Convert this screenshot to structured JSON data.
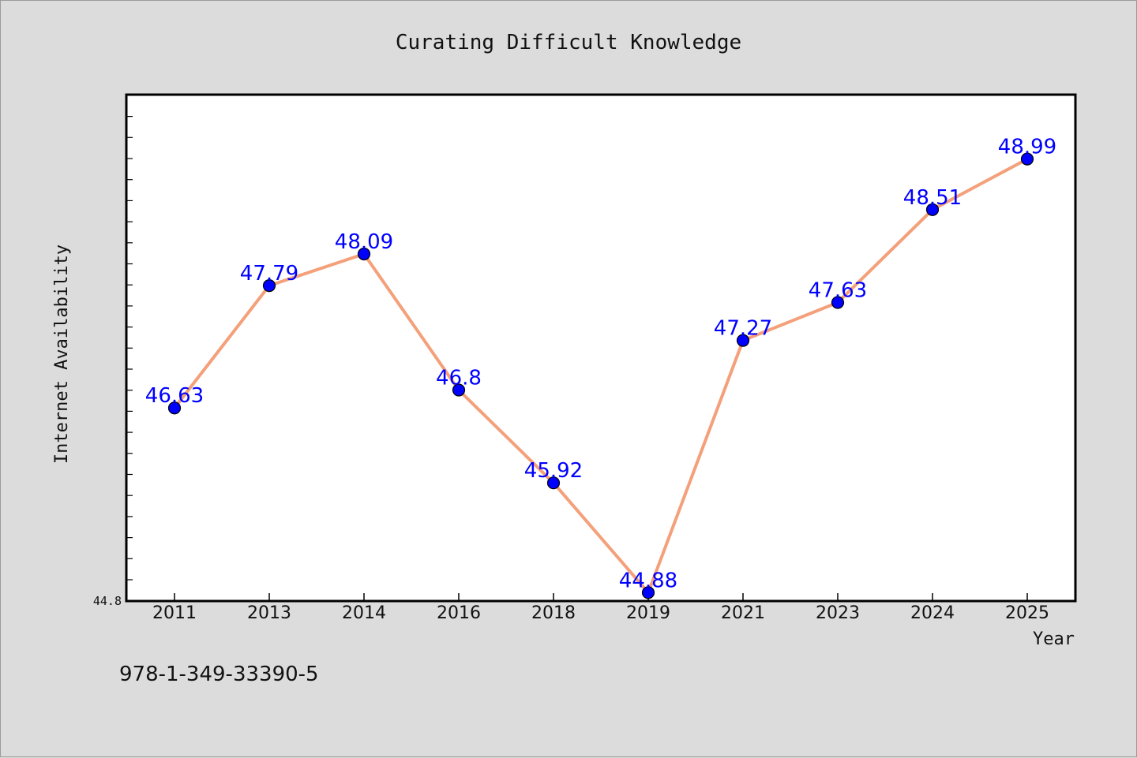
{
  "chart_data": {
    "type": "line",
    "title": "Curating Difficult Knowledge",
    "xlabel": "Year",
    "ylabel": "Internet Availability",
    "categories": [
      "2011",
      "2013",
      "2014",
      "2016",
      "2018",
      "2019",
      "2021",
      "2023",
      "2024",
      "2025"
    ],
    "series": [
      {
        "values": [
          46.63,
          47.79,
          48.09,
          46.8,
          45.92,
          44.88,
          47.27,
          47.63,
          48.51,
          48.99
        ],
        "labels": [
          "46.63",
          "47.79",
          "48.09",
          "46.8",
          "45.92",
          "44.88",
          "47.27",
          "47.63",
          "48.51",
          "48.99"
        ]
      }
    ],
    "ylim": [
      44.8,
      49.6
    ],
    "y_tick_label": "44.8",
    "grid": false,
    "legend": "none",
    "colors": {
      "line": "#f4a07a",
      "marker": "#0000ff",
      "data_label": "#0000ff",
      "background": "#dcdcdc",
      "plot_background": "#ffffff"
    }
  },
  "footnote": "978-1-349-33390-5"
}
